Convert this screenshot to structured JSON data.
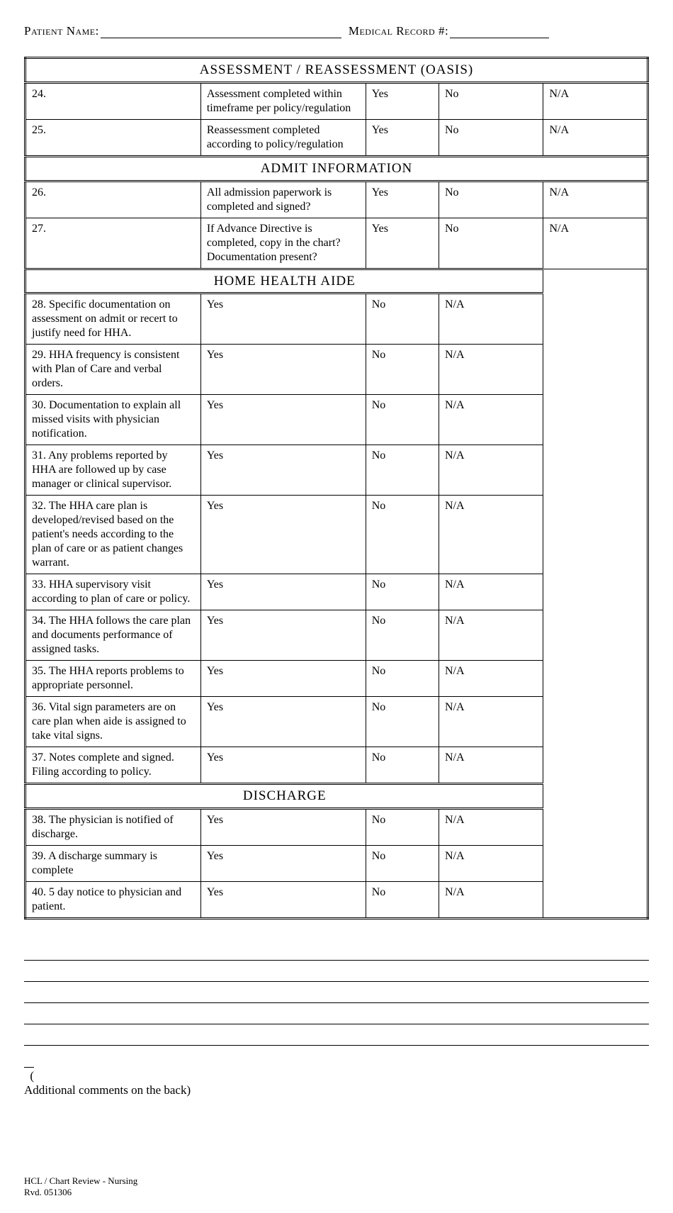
{
  "header": {
    "patient_label": "Patient Name:",
    "record_label": "Medical Record #:"
  },
  "options": {
    "yes": "Yes",
    "no": "No",
    "na": "N/A"
  },
  "sections": [
    {
      "title": "ASSESSMENT / REASSESSMENT (OASIS)",
      "numbered": true,
      "rows": [
        {
          "num": "24.",
          "text": "Assessment completed within timeframe per policy/regulation"
        },
        {
          "num": "25.",
          "text": "Reassessment completed according to policy/regulation"
        }
      ]
    },
    {
      "title": "ADMIT INFORMATION",
      "numbered": true,
      "rows": [
        {
          "num": "26.",
          "text": "All admission paperwork is completed and signed?"
        },
        {
          "num": "27.",
          "text": "If Advance Directive is completed, copy in the chart? Documentation present?"
        }
      ]
    },
    {
      "title": "HOME HEALTH AIDE",
      "numbered": false,
      "rows": [
        {
          "text": "28. Specific documentation on assessment on admit or recert to justify need for HHA."
        },
        {
          "text": "29.  HHA frequency is consistent with Plan of Care and verbal orders."
        },
        {
          "text": "30. Documentation to explain all missed visits with physician notification."
        },
        {
          "text": "31.  Any problems reported by HHA are followed up by case manager or clinical supervisor."
        },
        {
          "text": "32.  The HHA care plan is developed/revised based on the patient's needs according to the plan of care or as patient changes warrant."
        },
        {
          "text": "33.  HHA supervisory visit according to plan of care or policy."
        },
        {
          "text": "34.  The HHA follows the care plan and documents performance of assigned tasks."
        },
        {
          "text": "35.  The HHA reports problems to appropriate personnel."
        },
        {
          "text": "36.  Vital sign parameters are on care plan when aide is assigned to take vital signs."
        },
        {
          "text": "37.  Notes complete and signed.  Filing according to policy."
        }
      ]
    },
    {
      "title": "DISCHARGE",
      "numbered": false,
      "rows": [
        {
          "text": "38. The physician is notified of discharge."
        },
        {
          "text": "39. A discharge summary is complete"
        },
        {
          "text": "40. 5 day notice to physician and patient."
        }
      ]
    }
  ],
  "additional": {
    "paren": "(",
    "text": "Additional comments on the back)"
  },
  "footer": {
    "line1": "HCL / Chart Review - Nursing",
    "line2": "Rvd. 051306"
  }
}
